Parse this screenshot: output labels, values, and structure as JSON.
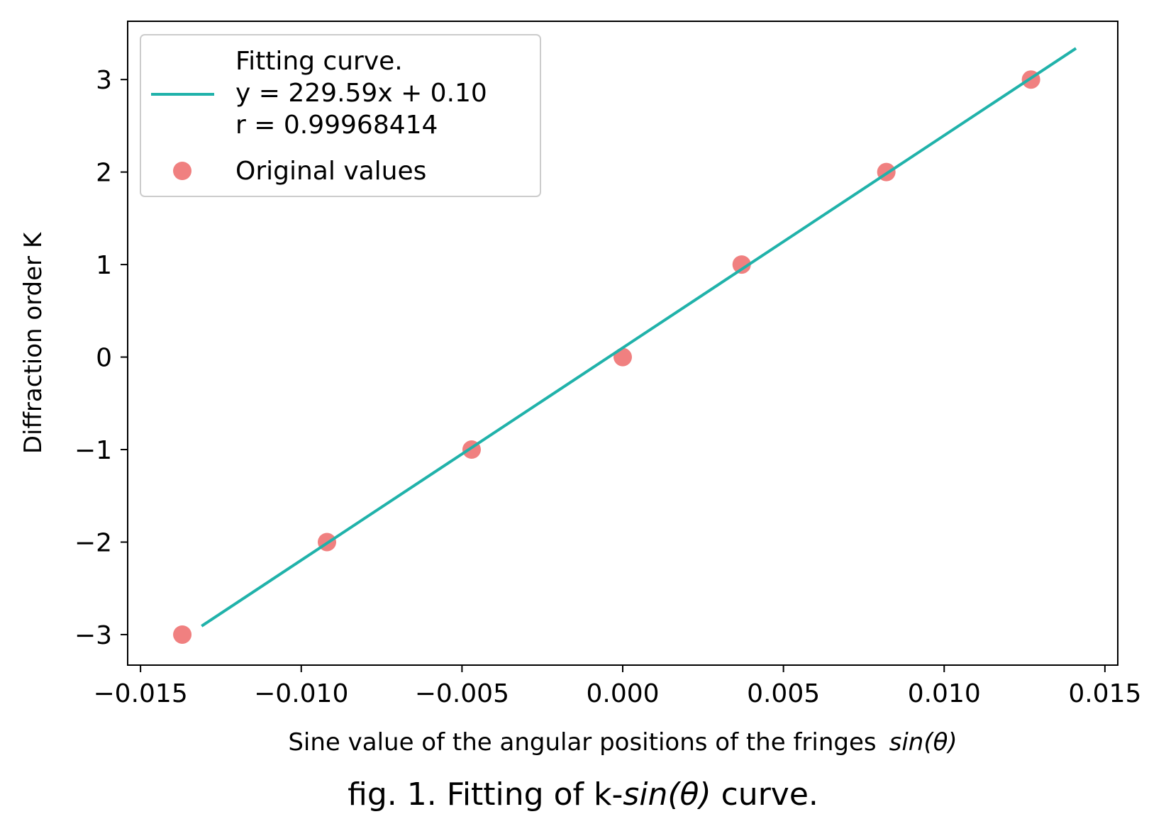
{
  "chart_data": {
    "type": "scatter",
    "xlabel": "Sine value of the angular positions of the fringes",
    "xlabel_math": "sin(θ)",
    "ylabel": "Diffraction order  K",
    "xlim": [
      -0.0154,
      0.0154
    ],
    "ylim": [
      -3.33,
      3.63
    ],
    "x_ticks": [
      -0.015,
      -0.01,
      -0.005,
      0.0,
      0.005,
      0.01,
      0.015
    ],
    "x_tick_labels": [
      "−0.015",
      "−0.010",
      "−0.005",
      "0.000",
      "0.005",
      "0.010",
      "0.015"
    ],
    "y_ticks": [
      -3,
      -2,
      -1,
      0,
      1,
      2,
      3
    ],
    "y_tick_labels": [
      "−3",
      "−2",
      "−1",
      "0",
      "1",
      "2",
      "3"
    ],
    "grid": false,
    "legend_position": "top-left",
    "series": [
      {
        "name": "Fitting curve.",
        "kind": "line",
        "color": "#20b2aa",
        "equation_label": "y = 229.59x + 0.10",
        "r_label": "r = 0.99968414",
        "slope": 229.59,
        "intercept": 0.1,
        "x": [
          -0.0131,
          0.0141
        ]
      },
      {
        "name": "Original values",
        "kind": "scatter",
        "color": "#f08080",
        "x": [
          -0.0137,
          -0.0092,
          -0.0047,
          0.0,
          0.0037,
          0.0082,
          0.0127
        ],
        "y": [
          -3,
          -2,
          -1,
          0,
          1,
          2,
          3
        ]
      }
    ]
  },
  "caption": {
    "prefix": "fig. 1. Fitting of k-",
    "math": "sin(θ)",
    "suffix": " curve."
  }
}
